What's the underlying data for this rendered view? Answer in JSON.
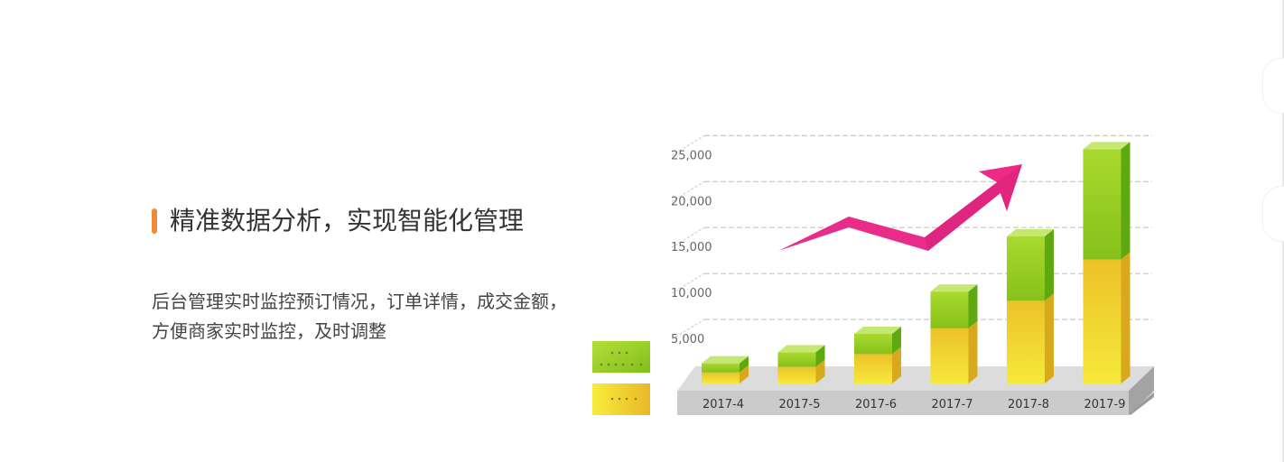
{
  "feature": {
    "title": "精准数据分析，实现智能化管理",
    "description": "后台管理实时监控预订情况，订单详情，成交金额，方便商家实时监控，及时调整"
  },
  "colors": {
    "accent": "#f08a3c",
    "series_green": "#9bcf24",
    "series_yellow": "#f1cc2a",
    "arrow": "#e8288a"
  },
  "chart_data": {
    "type": "bar",
    "stacked": true,
    "categories": [
      "2017-4",
      "2017-5",
      "2017-6",
      "2017-7",
      "2017-8",
      "2017-9"
    ],
    "y_ticks": [
      "5,000",
      "10,000",
      "15,000",
      "20,000",
      "25,000"
    ],
    "ylim": [
      0,
      27000
    ],
    "grid": true,
    "series": [
      {
        "color": "#f1cc2a",
        "values": [
          1200,
          1800,
          3200,
          6000,
          9000,
          13500
        ]
      },
      {
        "color": "#9bcf24",
        "values": [
          1000,
          1600,
          2200,
          4000,
          7000,
          12000
        ]
      }
    ],
    "legend_placement": "left"
  }
}
